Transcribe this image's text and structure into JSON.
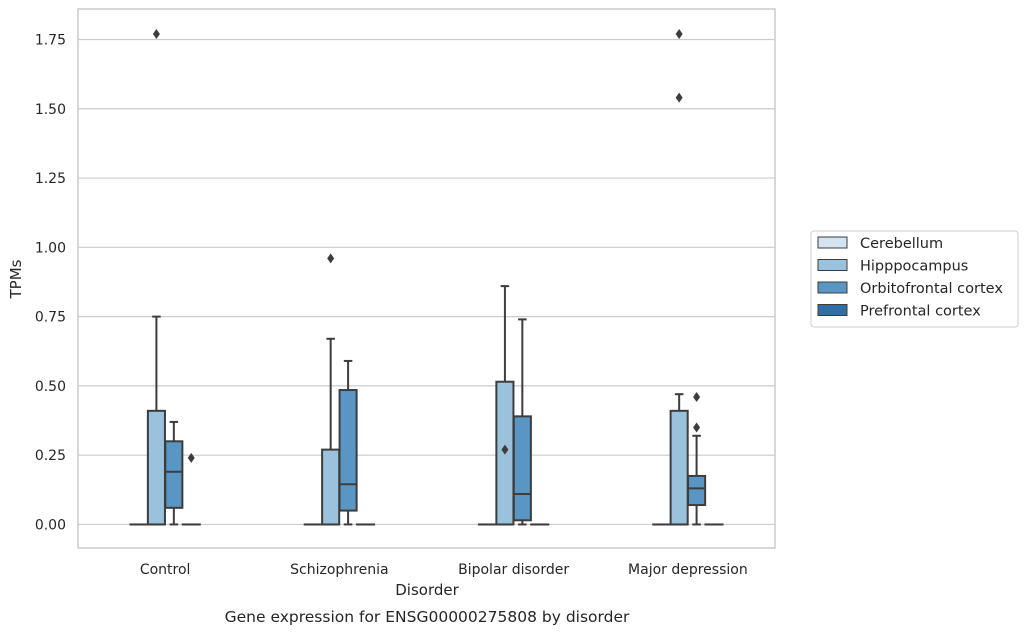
{
  "chart_data": {
    "type": "boxplot",
    "xlabel": "Disorder",
    "ylabel": "TPMs",
    "caption": "Gene expression for ENSG00000275808 by disorder",
    "ylim": [
      -0.085,
      1.86
    ],
    "yticks": [
      "0.00",
      "0.25",
      "0.50",
      "0.75",
      "1.00",
      "1.25",
      "1.50",
      "1.75"
    ],
    "grid": true,
    "legend_position": "right",
    "categories": [
      "Control",
      "Schizophrenia",
      "Bipolar disorder",
      "Major depression"
    ],
    "series": [
      {
        "name": "Cerebellum",
        "color": "#d3e3f1",
        "boxes": [
          {
            "q1": 0,
            "median": 0,
            "q3": 0,
            "whisker_low": 0,
            "whisker_high": 0,
            "outliers": []
          },
          {
            "q1": 0,
            "median": 0,
            "q3": 0,
            "whisker_low": 0,
            "whisker_high": 0,
            "outliers": []
          },
          {
            "q1": 0,
            "median": 0,
            "q3": 0,
            "whisker_low": 0,
            "whisker_high": 0,
            "outliers": []
          },
          {
            "q1": 0,
            "median": 0,
            "q3": 0,
            "whisker_low": 0,
            "whisker_high": 0,
            "outliers": []
          }
        ]
      },
      {
        "name": "Hipppocampus",
        "color": "#9bc2dc",
        "boxes": [
          {
            "q1": 0,
            "median": 0,
            "q3": 0.41,
            "whisker_low": 0,
            "whisker_high": 0.75,
            "outliers": [
              1.77
            ]
          },
          {
            "q1": 0,
            "median": 0,
            "q3": 0.27,
            "whisker_low": 0,
            "whisker_high": 0.67,
            "outliers": [
              0.96
            ]
          },
          {
            "q1": 0,
            "median": 0,
            "q3": 0.515,
            "whisker_low": 0,
            "whisker_high": 0.86,
            "outliers": [
              0.27
            ]
          },
          {
            "q1": 0,
            "median": 0,
            "q3": 0.41,
            "whisker_low": 0,
            "whisker_high": 0.47,
            "outliers": [
              1.77,
              1.54
            ]
          }
        ]
      },
      {
        "name": "Orbitofrontal cortex",
        "color": "#5a96c3",
        "boxes": [
          {
            "q1": 0.06,
            "median": 0.19,
            "q3": 0.3,
            "whisker_low": 0,
            "whisker_high": 0.37,
            "outliers": []
          },
          {
            "q1": 0.05,
            "median": 0.145,
            "q3": 0.485,
            "whisker_low": 0,
            "whisker_high": 0.59,
            "outliers": []
          },
          {
            "q1": 0.015,
            "median": 0.11,
            "q3": 0.39,
            "whisker_low": 0,
            "whisker_high": 0.74,
            "outliers": []
          },
          {
            "q1": 0.07,
            "median": 0.13,
            "q3": 0.175,
            "whisker_low": 0,
            "whisker_high": 0.32,
            "outliers": [
              0.46,
              0.35
            ]
          }
        ]
      },
      {
        "name": "Prefrontal cortex",
        "color": "#2e6fa8",
        "boxes": [
          {
            "q1": 0,
            "median": 0,
            "q3": 0,
            "whisker_low": 0,
            "whisker_high": 0,
            "outliers": [
              0.24
            ]
          },
          {
            "q1": 0,
            "median": 0,
            "q3": 0,
            "whisker_low": 0,
            "whisker_high": 0,
            "outliers": []
          },
          {
            "q1": 0,
            "median": 0,
            "q3": 0,
            "whisker_low": 0,
            "whisker_high": 0,
            "outliers": []
          },
          {
            "q1": 0,
            "median": 0,
            "q3": 0,
            "whisker_low": 0,
            "whisker_high": 0,
            "outliers": []
          }
        ]
      }
    ]
  }
}
